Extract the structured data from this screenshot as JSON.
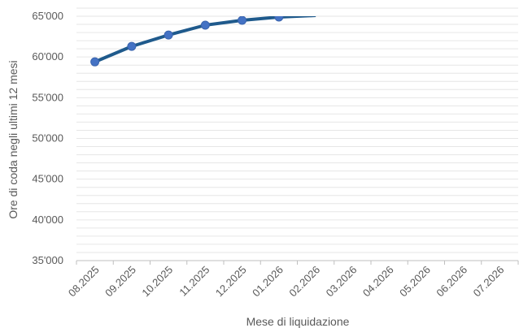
{
  "chart_data": {
    "type": "line",
    "title": "",
    "xlabel": "Mese di liquidazione",
    "ylabel": "Ore di coda  negli ultimi 12 mesi",
    "categories": [
      "08.2025",
      "09.2025",
      "10.2025",
      "11.2025",
      "12.2025",
      "01.2026",
      "02.2026",
      "03.2026",
      "04.2026",
      "05.2026",
      "06.2026",
      "07.2026"
    ],
    "y_ticks": [
      "35'000",
      "40'000",
      "45'000",
      "50'000",
      "55'000",
      "60'000",
      "65'000"
    ],
    "ylim": [
      35000,
      65000
    ],
    "grid": "horizontal minor every 1000",
    "series": [
      {
        "values": [
          59400,
          61300,
          62700,
          63900,
          64500,
          64900,
          65100,
          null,
          null,
          null,
          null,
          null
        ]
      }
    ],
    "colors": {
      "line": "#1f5a8c",
      "marker": "#4472c4",
      "grid": "#e6e6e6",
      "axis": "#bfbfbf"
    }
  }
}
